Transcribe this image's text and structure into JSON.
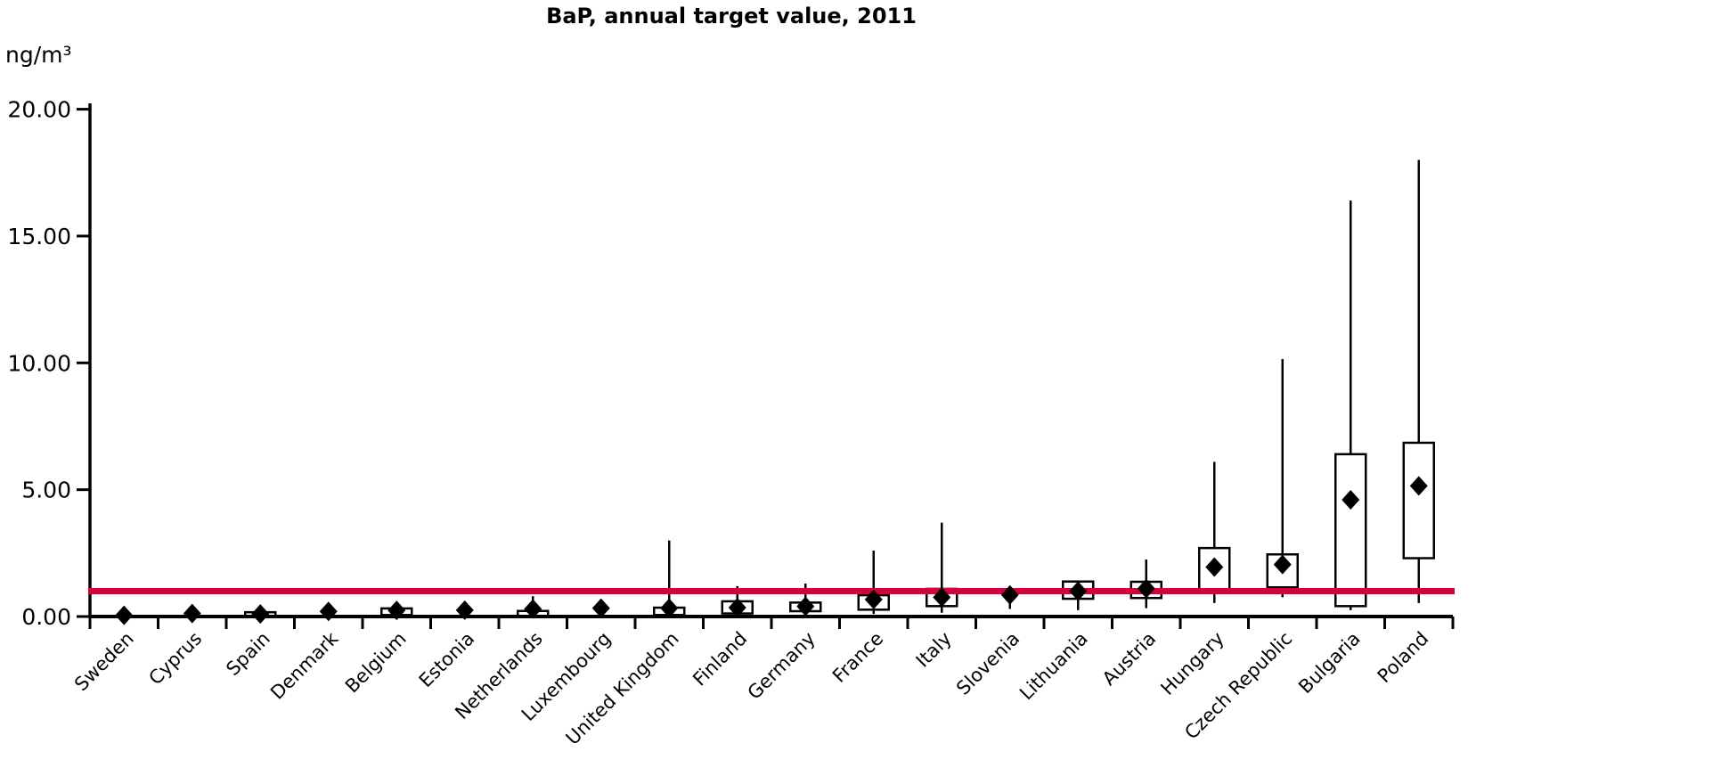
{
  "title": "BaP, annual target value, 2011",
  "y_axis": {
    "unit": "ng/m³",
    "tick_labels": [
      "0.00",
      "5.00",
      "10.00",
      "15.00",
      "20.00"
    ],
    "tick_values": [
      0,
      5,
      10,
      15,
      20
    ],
    "min": 0,
    "max": 20
  },
  "target_line": {
    "value": 1.0,
    "color": "#d6003c"
  },
  "chart_data": {
    "type": "boxplot",
    "title": "BaP, annual target value, 2011",
    "ylabel": "ng/m³",
    "ylim": [
      0,
      20
    ],
    "grid": false,
    "legend": "none",
    "marker": "mean-diamond",
    "target_line_value": 1.0,
    "categories": [
      "Sweden",
      "Cyprus",
      "Spain",
      "Denmark",
      "Belgium",
      "Estonia",
      "Netherlands",
      "Luxembourg",
      "United Kingdom",
      "Finland",
      "Germany",
      "France",
      "Italy",
      "Slovenia",
      "Lithuania",
      "Austria",
      "Hungary",
      "Czech Republic",
      "Bulgaria",
      "Poland"
    ],
    "series": [
      {
        "country": "Sweden",
        "mean": 0.05,
        "q1": null,
        "q3": null,
        "min": null,
        "max": null
      },
      {
        "country": "Cyprus",
        "mean": 0.12,
        "q1": null,
        "q3": null,
        "min": null,
        "max": null
      },
      {
        "country": "Spain",
        "mean": 0.1,
        "q1": 0.0,
        "q3": 0.17,
        "min": null,
        "max": null
      },
      {
        "country": "Denmark",
        "mean": 0.2,
        "q1": null,
        "q3": null,
        "min": null,
        "max": null
      },
      {
        "country": "Belgium",
        "mean": 0.24,
        "q1": 0.06,
        "q3": 0.32,
        "min": null,
        "max": null
      },
      {
        "country": "Estonia",
        "mean": 0.25,
        "q1": null,
        "q3": null,
        "min": null,
        "max": null
      },
      {
        "country": "Netherlands",
        "mean": 0.3,
        "q1": 0.02,
        "q3": 0.22,
        "min": null,
        "max": 0.8
      },
      {
        "country": "Luxembourg",
        "mean": 0.33,
        "q1": null,
        "q3": null,
        "min": null,
        "max": null
      },
      {
        "country": "United Kingdom",
        "mean": 0.33,
        "q1": 0.06,
        "q3": 0.35,
        "min": 0.02,
        "max": 3.0
      },
      {
        "country": "Finland",
        "mean": 0.35,
        "q1": 0.12,
        "q3": 0.6,
        "min": 0.05,
        "max": 1.2
      },
      {
        "country": "Germany",
        "mean": 0.4,
        "q1": 0.21,
        "q3": 0.55,
        "min": 0.1,
        "max": 1.3
      },
      {
        "country": "France",
        "mean": 0.67,
        "q1": 0.27,
        "q3": 0.84,
        "min": 0.1,
        "max": 2.6
      },
      {
        "country": "Italy",
        "mean": 0.76,
        "q1": 0.41,
        "q3": 1.09,
        "min": 0.15,
        "max": 3.7
      },
      {
        "country": "Slovenia",
        "mean": 0.85,
        "q1": null,
        "q3": null,
        "min": 0.3,
        "max": 0.85
      },
      {
        "country": "Lithuania",
        "mean": 1.0,
        "q1": 0.7,
        "q3": 1.38,
        "min": 0.25,
        "max": 1.38
      },
      {
        "country": "Austria",
        "mean": 1.1,
        "q1": 0.73,
        "q3": 1.37,
        "min": 0.33,
        "max": 2.25
      },
      {
        "country": "Hungary",
        "mean": 1.95,
        "q1": 1.0,
        "q3": 2.7,
        "min": 0.53,
        "max": 6.1
      },
      {
        "country": "Czech Republic",
        "mean": 2.05,
        "q1": 1.15,
        "q3": 2.45,
        "min": 0.76,
        "max": 10.15
      },
      {
        "country": "Bulgaria",
        "mean": 4.6,
        "q1": 0.41,
        "q3": 6.4,
        "min": 0.25,
        "max": 16.4
      },
      {
        "country": "Poland",
        "mean": 5.15,
        "q1": 2.3,
        "q3": 6.85,
        "min": 0.53,
        "max": 18.0
      }
    ]
  }
}
